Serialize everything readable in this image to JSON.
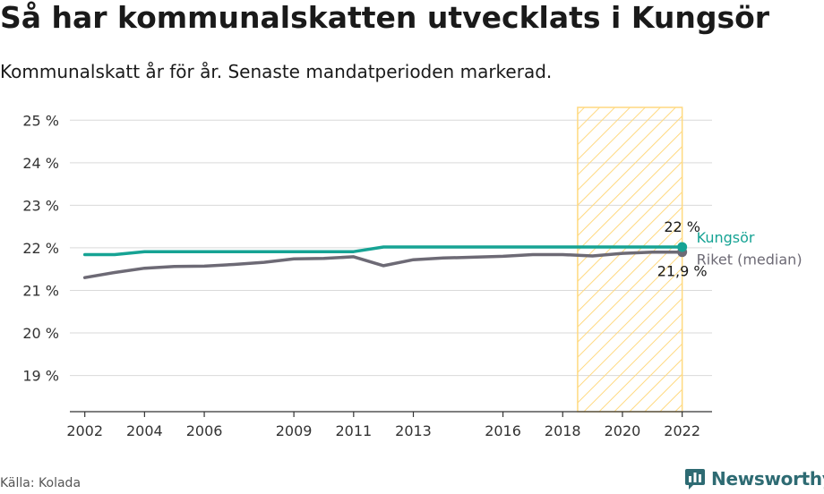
{
  "header": {
    "title": "Så har kommunalskatten utvecklats i Kungsör",
    "subtitle": "Kommunalskatt år för år. Senaste mandatperioden markerad."
  },
  "footer": {
    "source": "Källa: Kolada",
    "brand": "Newsworthy"
  },
  "colors": {
    "kungsor": "#16a394",
    "median": "#6d6a75",
    "highlight": "#ffd980",
    "grid": "#d9d9d9",
    "brand": "#2e6b73"
  },
  "chart_data": {
    "type": "line",
    "x": [
      2002,
      2003,
      2004,
      2005,
      2006,
      2007,
      2008,
      2009,
      2010,
      2011,
      2012,
      2013,
      2014,
      2015,
      2016,
      2017,
      2018,
      2019,
      2020,
      2021,
      2022
    ],
    "series": [
      {
        "name": "Kungsör",
        "values": [
          21.84,
          21.84,
          21.91,
          21.91,
          21.91,
          21.91,
          21.91,
          21.91,
          21.91,
          21.91,
          22.02,
          22.02,
          22.02,
          22.02,
          22.02,
          22.02,
          22.02,
          22.02,
          22.02,
          22.02,
          22.02
        ]
      },
      {
        "name": "Riket (median)",
        "values": [
          21.3,
          21.42,
          21.52,
          21.56,
          21.57,
          21.61,
          21.66,
          21.74,
          21.75,
          21.79,
          21.58,
          21.72,
          21.76,
          21.78,
          21.8,
          21.84,
          21.84,
          21.81,
          21.87,
          21.9,
          21.9
        ]
      }
    ],
    "end_labels": [
      "22 %",
      "21,9 %"
    ],
    "x_ticks": [
      "2002",
      "2004",
      "2006",
      "2009",
      "2011",
      "2013",
      "2016",
      "2018",
      "2020",
      "2022"
    ],
    "y_ticks": [
      "19 %",
      "20 %",
      "21 %",
      "22 %",
      "23 %",
      "24 %",
      "25 %"
    ],
    "ylim": [
      18.15,
      25.3
    ],
    "xlim": [
      2001.5,
      2023
    ],
    "highlight_period": [
      2018.5,
      2022
    ],
    "grid": "horizontal",
    "xlabel": "",
    "ylabel": ""
  }
}
